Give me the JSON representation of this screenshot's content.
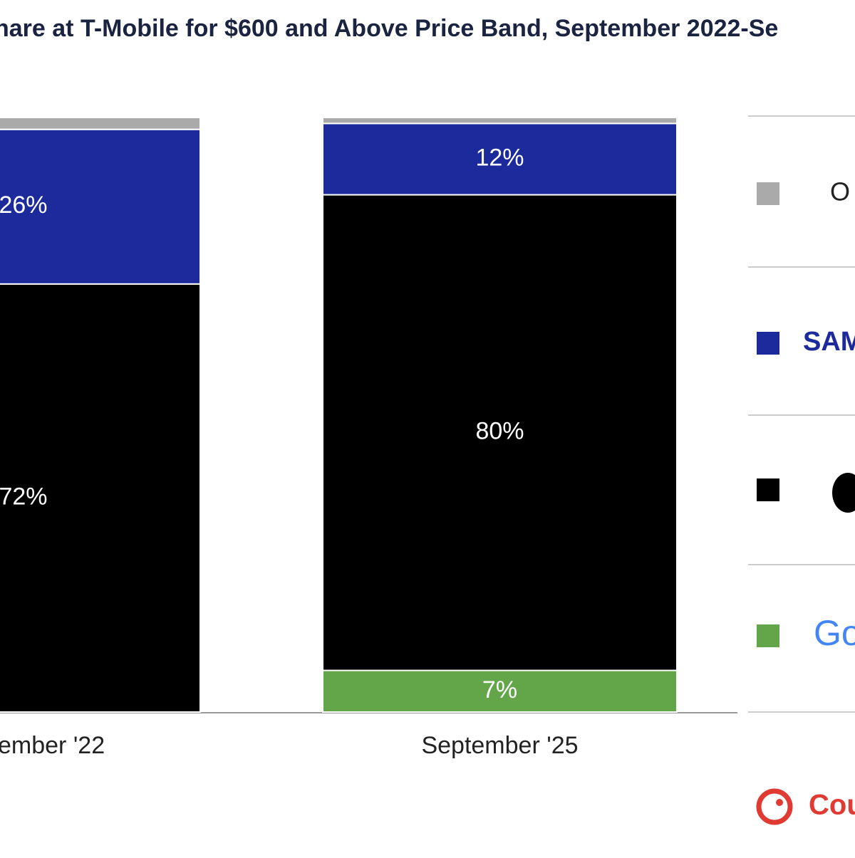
{
  "chart_data": {
    "type": "stacked-bar",
    "title": "hare at T-Mobile for $600 and Above Price Band, September 2022-Se",
    "categories": [
      "ember '22",
      "September '25"
    ],
    "ylim": [
      0,
      100
    ],
    "series": [
      {
        "name": "Go",
        "color": "#63a64a",
        "values": [
          0,
          7
        ],
        "value_labels": [
          null,
          "7%"
        ]
      },
      {
        "name": null,
        "color": "#000000",
        "values": [
          72,
          80
        ],
        "value_labels": [
          "72%",
          "80%"
        ]
      },
      {
        "name": "SAM",
        "color": "#1c2a9c",
        "values": [
          26,
          12
        ],
        "value_labels": [
          "26%",
          "12%"
        ]
      },
      {
        "name": "O",
        "color": "#aaaaaa",
        "values": [
          2,
          1
        ],
        "value_labels": [
          null,
          null
        ]
      }
    ],
    "source": "Cou"
  }
}
